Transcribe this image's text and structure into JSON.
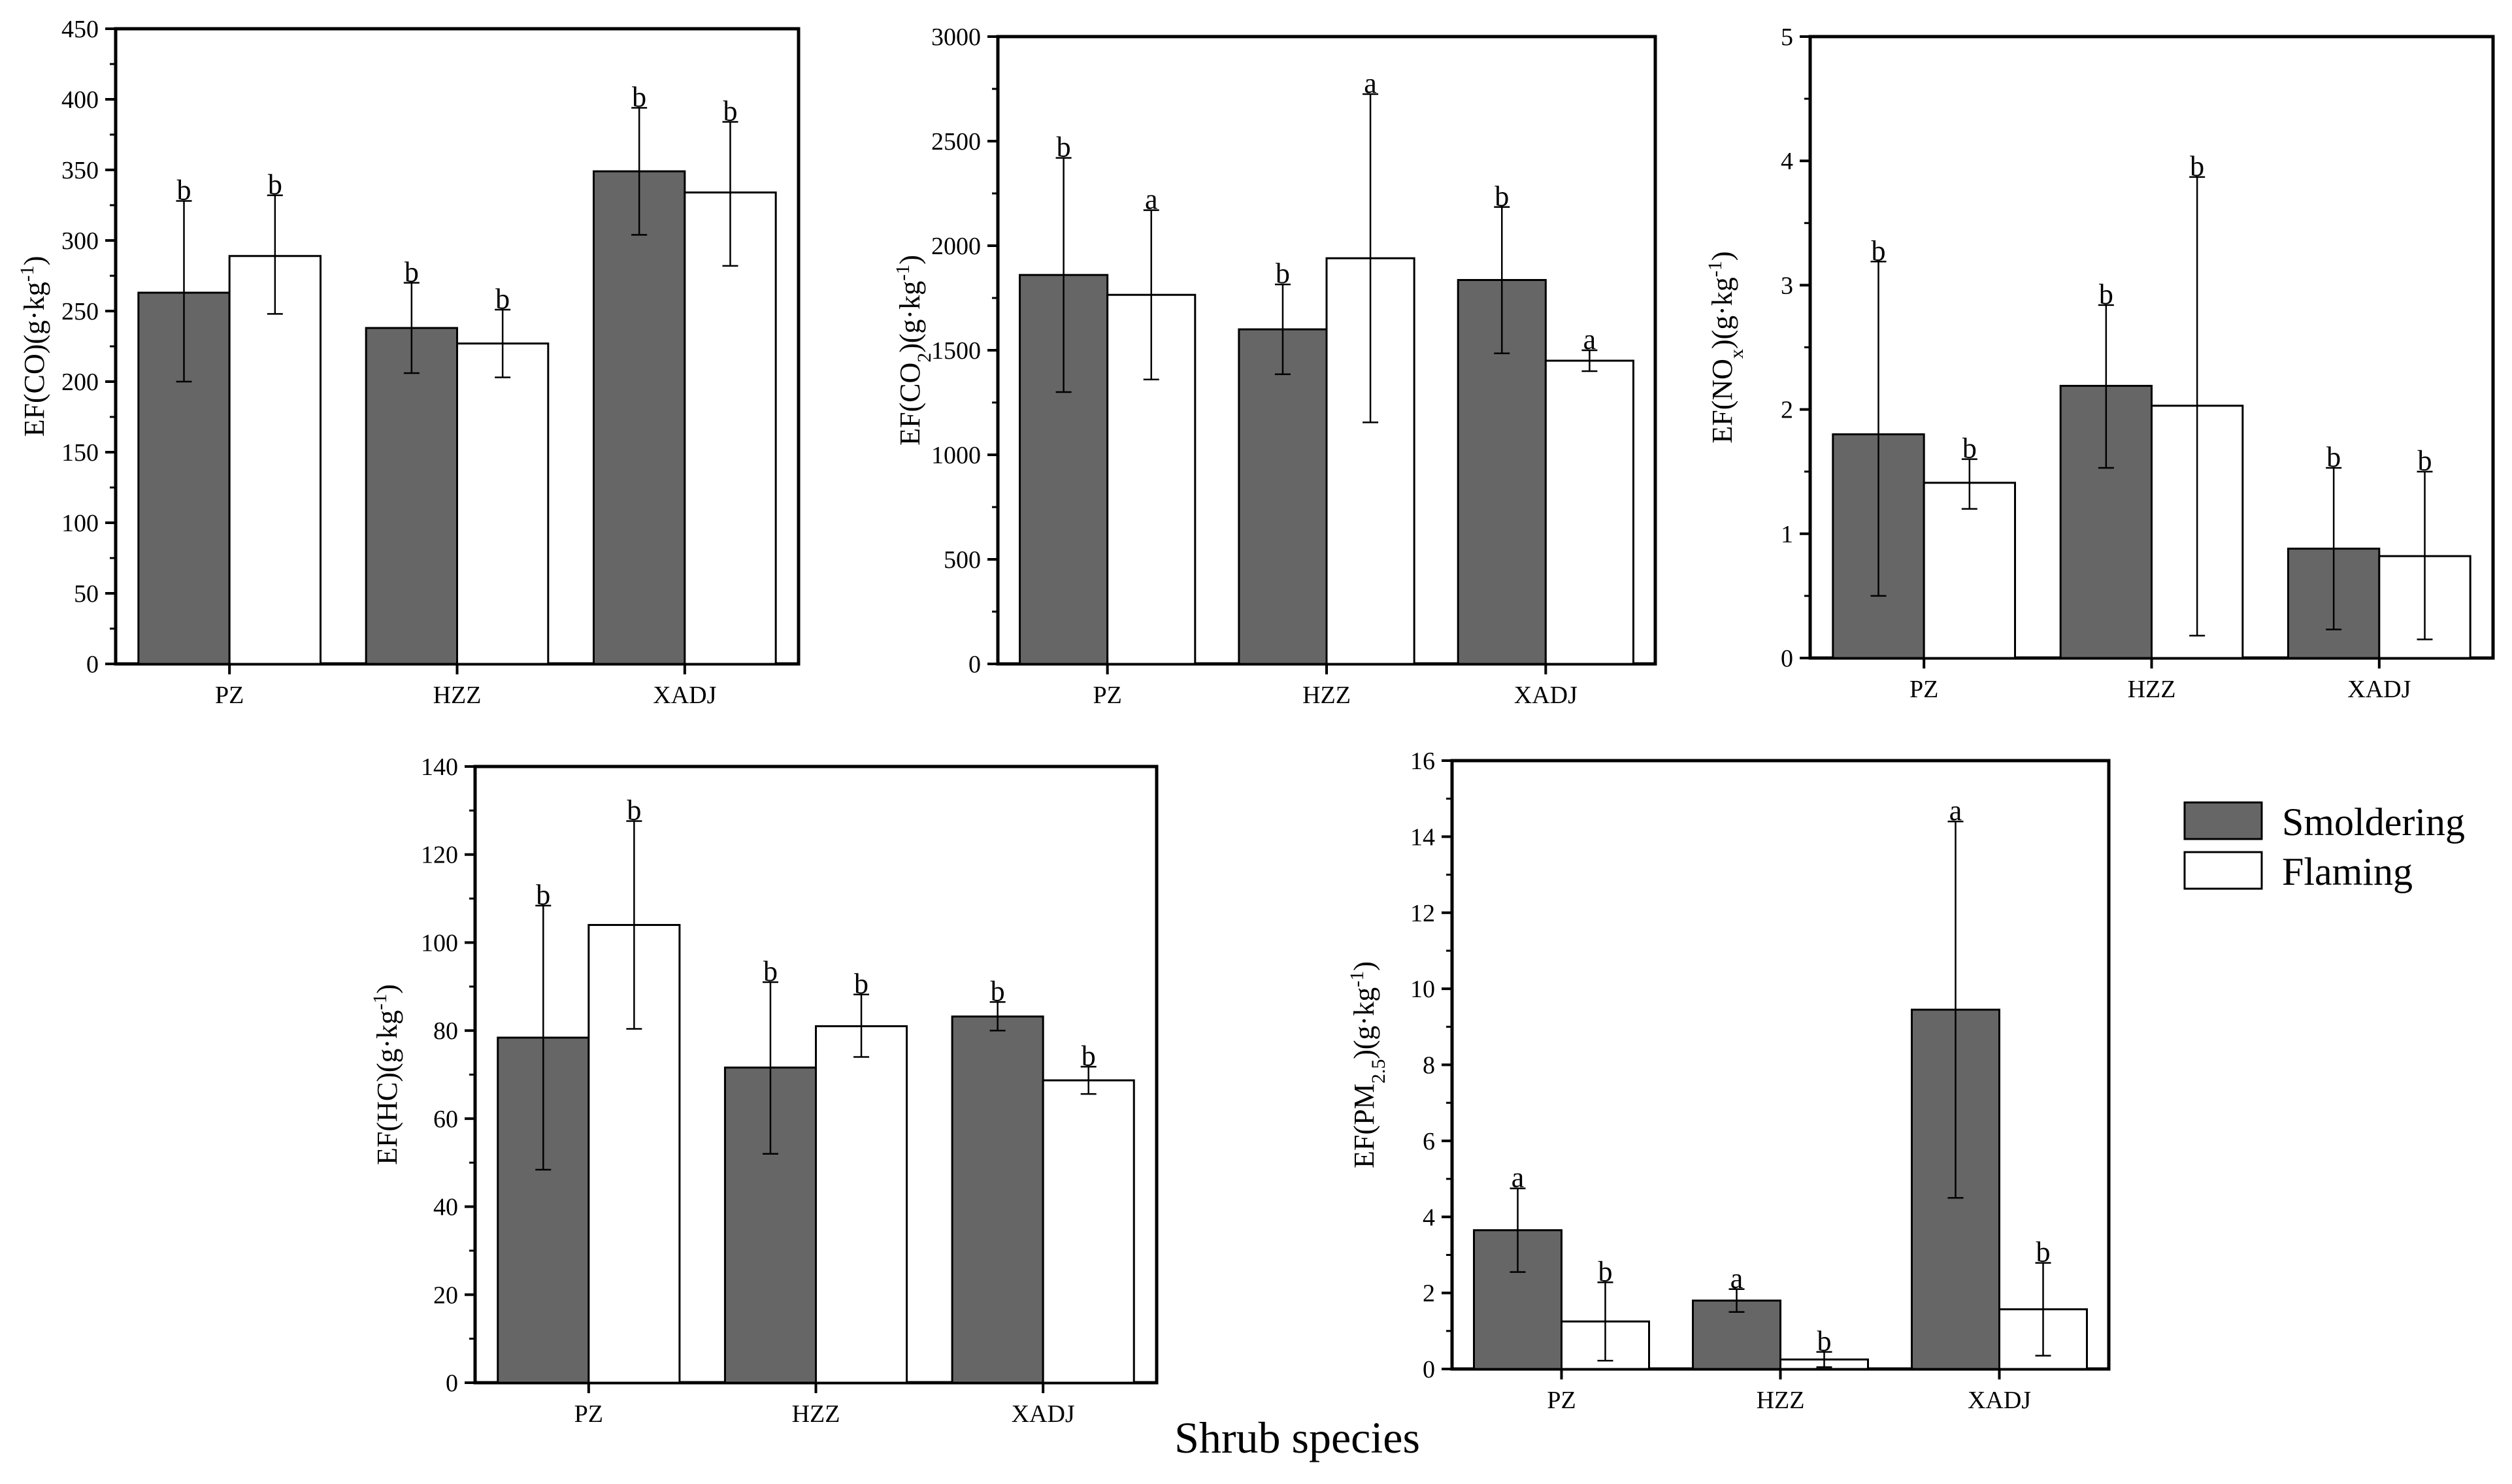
{
  "figure": {
    "x_title": "Shrub species",
    "legend": [
      {
        "label": "Smoldering",
        "color": "#666666"
      },
      {
        "label": "Flaming",
        "color": "#ffffff"
      }
    ]
  },
  "chart_data": [
    {
      "type": "bar",
      "ylabel": "EF(CO)(g·kg-1)",
      "categories": [
        "PZ",
        "HZZ",
        "XADJ"
      ],
      "ylim": [
        0,
        450
      ],
      "yticks": [
        0,
        50,
        100,
        150,
        200,
        250,
        300,
        350,
        400,
        450
      ],
      "series": [
        {
          "name": "Smoldering",
          "values": [
            263,
            238,
            349
          ],
          "err_low": [
            200,
            206,
            304
          ],
          "err_high": [
            328,
            270,
            394
          ],
          "labels": [
            "b",
            "b",
            "b"
          ]
        },
        {
          "name": "Flaming",
          "values": [
            289,
            227,
            334
          ],
          "err_low": [
            248,
            203,
            282
          ],
          "err_high": [
            332,
            251,
            384
          ],
          "labels": [
            "b",
            "b",
            "b"
          ]
        }
      ]
    },
    {
      "type": "bar",
      "ylabel": "EF(CO2)(g·kg-1)",
      "categories": [
        "PZ",
        "HZZ",
        "XADJ"
      ],
      "ylim": [
        0,
        3000
      ],
      "yticks": [
        0,
        500,
        1000,
        1500,
        2000,
        2500,
        3000
      ],
      "series": [
        {
          "name": "Smoldering",
          "values": [
            1860,
            1600,
            1836
          ],
          "err_low": [
            1300,
            1385,
            1485
          ],
          "err_high": [
            2420,
            1815,
            2185
          ],
          "labels": [
            "b",
            "b",
            "b"
          ]
        },
        {
          "name": "Flaming",
          "values": [
            1765,
            1940,
            1450
          ],
          "err_low": [
            1360,
            1155,
            1400
          ],
          "err_high": [
            2170,
            2725,
            1500
          ],
          "labels": [
            "a",
            "a",
            "a"
          ]
        }
      ]
    },
    {
      "type": "bar",
      "ylabel": "EF(NOx)(g·kg-1)",
      "categories": [
        "PZ",
        "HZZ",
        "XADJ"
      ],
      "ylim": [
        0,
        5
      ],
      "yticks": [
        0,
        1,
        2,
        3,
        4,
        5
      ],
      "series": [
        {
          "name": "Smoldering",
          "values": [
            1.8,
            2.19,
            0.88
          ],
          "err_low": [
            0.5,
            1.53,
            0.23
          ],
          "err_high": [
            3.19,
            2.84,
            1.53
          ],
          "labels": [
            "b",
            "b",
            "b"
          ]
        },
        {
          "name": "Flaming",
          "values": [
            1.41,
            2.03,
            0.82
          ],
          "err_low": [
            1.2,
            0.18,
            0.15
          ],
          "err_high": [
            1.6,
            3.87,
            1.5
          ],
          "labels": [
            "b",
            "b",
            "b"
          ]
        }
      ]
    },
    {
      "type": "bar",
      "ylabel": "EF(HC)(g·kg-1)",
      "categories": [
        "PZ",
        "HZZ",
        "XADJ"
      ],
      "ylim": [
        0,
        140
      ],
      "yticks": [
        0,
        20,
        40,
        60,
        80,
        100,
        120,
        140
      ],
      "series": [
        {
          "name": "Smoldering",
          "values": [
            78.4,
            71.6,
            83.2
          ],
          "err_low": [
            48.4,
            52,
            80
          ],
          "err_high": [
            108.4,
            91,
            86.5
          ],
          "labels": [
            "b",
            "b",
            "b"
          ]
        },
        {
          "name": "Flaming",
          "values": [
            104,
            81,
            68.7
          ],
          "err_low": [
            80.4,
            74,
            65.6
          ],
          "err_high": [
            127.6,
            88.2,
            71.8
          ],
          "labels": [
            "b",
            "b",
            "b"
          ]
        }
      ]
    },
    {
      "type": "bar",
      "ylabel": "EF(PM2.5)(g·kg-1)",
      "categories": [
        "PZ",
        "HZZ",
        "XADJ"
      ],
      "ylim": [
        0,
        16
      ],
      "yticks": [
        0,
        2,
        4,
        6,
        8,
        10,
        12,
        14,
        16
      ],
      "series": [
        {
          "name": "Smoldering",
          "values": [
            3.65,
            1.8,
            9.45
          ],
          "err_low": [
            2.55,
            1.5,
            4.5
          ],
          "err_high": [
            4.75,
            2.1,
            14.4
          ],
          "labels": [
            "a",
            "a",
            "a"
          ]
        },
        {
          "name": "Flaming",
          "values": [
            1.25,
            0.25,
            1.57
          ],
          "err_low": [
            0.22,
            0.05,
            0.35
          ],
          "err_high": [
            2.28,
            0.45,
            2.79
          ],
          "labels": [
            "b",
            "b",
            "b"
          ]
        }
      ]
    }
  ]
}
